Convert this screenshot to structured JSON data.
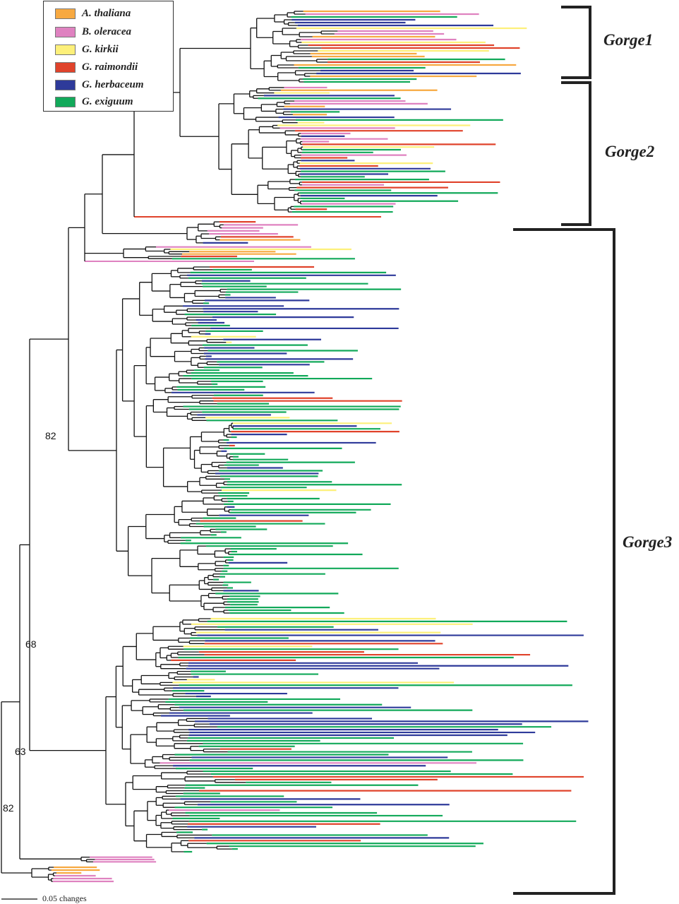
{
  "legend": [
    {
      "name": "A. thaliana",
      "color": "#f7a941"
    },
    {
      "name": "B. oleracea",
      "color": "#df82c0"
    },
    {
      "name": "G. kirkii",
      "color": "#fdf07a"
    },
    {
      "name": "G. raimondii",
      "color": "#e0432b"
    },
    {
      "name": "G. herbaceum",
      "color": "#2e3a9a"
    },
    {
      "name": "G. exiguum",
      "color": "#12a95a"
    }
  ],
  "groups": [
    "Gorge1",
    "Gorge2",
    "Gorge3"
  ],
  "bootstrap": [
    "82",
    "68",
    "63",
    "82"
  ],
  "scale_bar": "0.05 changes",
  "clades": {
    "gorge1": {
      "A. thaliana": 6,
      "B. oleracea": 4,
      "G. kirkii": 3,
      "G. raimondii": 3,
      "G. herbaceum": 5,
      "G. exiguum": 5
    },
    "gorge2": {
      "A. thaliana": 3,
      "B. oleracea": 10,
      "G. kirkii": 5,
      "G. raimondii": 7,
      "G. herbaceum": 8,
      "G. exiguum": 14
    },
    "mixed1": {
      "A. thaliana": 1,
      "B. oleracea": 4,
      "G. raimondii": 2,
      "G. herbaceum": 1
    },
    "mixed2": {
      "A. thaliana": 2,
      "B. oleracea": 1,
      "G. kirkii": 1,
      "G. raimondii": 1,
      "G. exiguum": 1
    },
    "gorge3a": {
      "G. kirkii": 5,
      "G. raimondii": 6,
      "G. herbaceum": 30,
      "G. exiguum": 84
    },
    "gorge3b": {
      "B. oleracea": 2,
      "G. kirkii": 6,
      "G. raimondii": 10,
      "G. herbaceum": 25,
      "G. exiguum": 42
    },
    "outgroup_pink": {
      "B. oleracea": 3
    },
    "outgroup_orange": {
      "A. thaliana": 3,
      "B. oleracea": 3
    }
  }
}
